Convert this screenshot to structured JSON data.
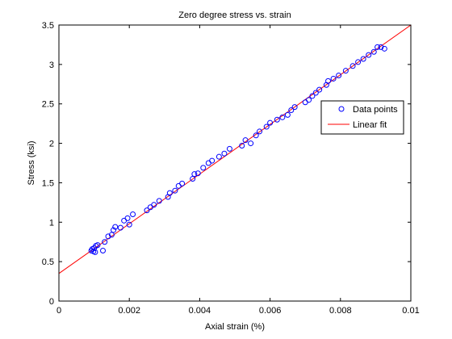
{
  "chart_data": {
    "type": "scatter",
    "title": "Zero degree stress vs. strain",
    "xlabel": "Axial strain (%)",
    "ylabel": "Stress (ksi)",
    "xlim": [
      0,
      0.01
    ],
    "ylim": [
      0,
      3.5
    ],
    "x_ticks": [
      0,
      0.002,
      0.004,
      0.006,
      0.008,
      0.01
    ],
    "x_tick_labels": [
      "0",
      "0.002",
      "0.004",
      "0.006",
      "0.008",
      "0.01"
    ],
    "y_ticks": [
      0,
      0.5,
      1,
      1.5,
      2,
      2.5,
      3,
      3.5
    ],
    "y_tick_labels": [
      "0",
      "0.5",
      "1",
      "1.5",
      "2",
      "2.5",
      "3",
      "3.5"
    ],
    "grid": false,
    "legend_position": "right",
    "legend": [
      "Data points",
      "Linear fit"
    ],
    "series": [
      {
        "name": "Data points",
        "kind": "scatter",
        "color": "#0000ff",
        "marker": "open-circle",
        "points": [
          [
            0.00092,
            0.64
          ],
          [
            0.00095,
            0.66
          ],
          [
            0.00098,
            0.63
          ],
          [
            0.001,
            0.67
          ],
          [
            0.00103,
            0.62
          ],
          [
            0.00105,
            0.7
          ],
          [
            0.0011,
            0.71
          ],
          [
            0.00125,
            0.64
          ],
          [
            0.0013,
            0.75
          ],
          [
            0.0014,
            0.82
          ],
          [
            0.0015,
            0.84
          ],
          [
            0.00155,
            0.9
          ],
          [
            0.0016,
            0.94
          ],
          [
            0.00175,
            0.93
          ],
          [
            0.00185,
            1.02
          ],
          [
            0.00195,
            1.05
          ],
          [
            0.002,
            0.97
          ],
          [
            0.0021,
            1.1
          ],
          [
            0.0025,
            1.15
          ],
          [
            0.0026,
            1.19
          ],
          [
            0.0027,
            1.22
          ],
          [
            0.00285,
            1.27
          ],
          [
            0.0031,
            1.32
          ],
          [
            0.00315,
            1.37
          ],
          [
            0.0033,
            1.4
          ],
          [
            0.0034,
            1.46
          ],
          [
            0.0035,
            1.49
          ],
          [
            0.0038,
            1.55
          ],
          [
            0.00385,
            1.61
          ],
          [
            0.00395,
            1.62
          ],
          [
            0.0041,
            1.69
          ],
          [
            0.00425,
            1.75
          ],
          [
            0.00435,
            1.78
          ],
          [
            0.00455,
            1.83
          ],
          [
            0.0047,
            1.87
          ],
          [
            0.00485,
            1.93
          ],
          [
            0.0052,
            1.97
          ],
          [
            0.0053,
            2.04
          ],
          [
            0.00545,
            2.0
          ],
          [
            0.0056,
            2.1
          ],
          [
            0.0057,
            2.15
          ],
          [
            0.0059,
            2.21
          ],
          [
            0.006,
            2.26
          ],
          [
            0.0062,
            2.3
          ],
          [
            0.00635,
            2.33
          ],
          [
            0.0065,
            2.36
          ],
          [
            0.0066,
            2.42
          ],
          [
            0.0067,
            2.46
          ],
          [
            0.007,
            2.52
          ],
          [
            0.0071,
            2.55
          ],
          [
            0.0072,
            2.6
          ],
          [
            0.0073,
            2.64
          ],
          [
            0.0074,
            2.68
          ],
          [
            0.0076,
            2.74
          ],
          [
            0.00765,
            2.79
          ],
          [
            0.0078,
            2.82
          ],
          [
            0.00795,
            2.86
          ],
          [
            0.00815,
            2.92
          ],
          [
            0.00835,
            2.98
          ],
          [
            0.0085,
            3.03
          ],
          [
            0.00865,
            3.07
          ],
          [
            0.0088,
            3.12
          ],
          [
            0.00895,
            3.16
          ],
          [
            0.00905,
            3.22
          ],
          [
            0.00915,
            3.22
          ],
          [
            0.00925,
            3.2
          ]
        ]
      },
      {
        "name": "Linear fit",
        "kind": "line",
        "color": "#ff0000",
        "x": [
          0,
          0.01
        ],
        "y": [
          0.35,
          3.5
        ]
      }
    ]
  }
}
